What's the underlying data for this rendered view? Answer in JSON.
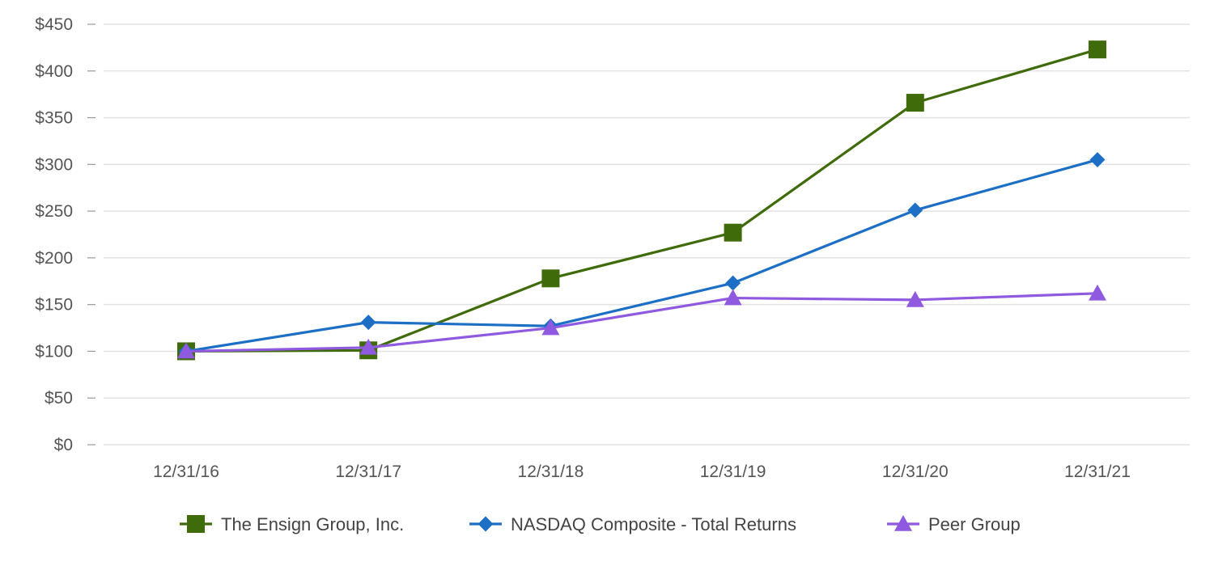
{
  "chart_data": {
    "type": "line",
    "title": "",
    "xlabel": "",
    "ylabel": "",
    "categories": [
      "12/31/16",
      "12/31/17",
      "12/31/18",
      "12/31/19",
      "12/31/20",
      "12/31/21"
    ],
    "ylim": [
      0,
      450
    ],
    "yticks": [
      0,
      50,
      100,
      150,
      200,
      250,
      300,
      350,
      400,
      450
    ],
    "ytick_labels": [
      "$0",
      "$50",
      "$100",
      "$150",
      "$200",
      "$250",
      "$300",
      "$350",
      "$400",
      "$450"
    ],
    "grid": true,
    "legend_position": "bottom",
    "series": [
      {
        "name": "The Ensign Group, Inc.",
        "values": [
          100,
          101,
          178,
          227,
          366,
          423
        ],
        "color": "#3f6b0a",
        "marker": "square"
      },
      {
        "name": "NASDAQ Composite - Total Returns",
        "values": [
          100,
          131,
          127,
          173,
          251,
          305
        ],
        "color": "#1c6fc5",
        "marker": "diamond"
      },
      {
        "name": "Peer Group",
        "values": [
          100,
          104,
          125,
          157,
          155,
          162
        ],
        "color": "#8f5ae0",
        "marker": "triangle"
      }
    ]
  }
}
